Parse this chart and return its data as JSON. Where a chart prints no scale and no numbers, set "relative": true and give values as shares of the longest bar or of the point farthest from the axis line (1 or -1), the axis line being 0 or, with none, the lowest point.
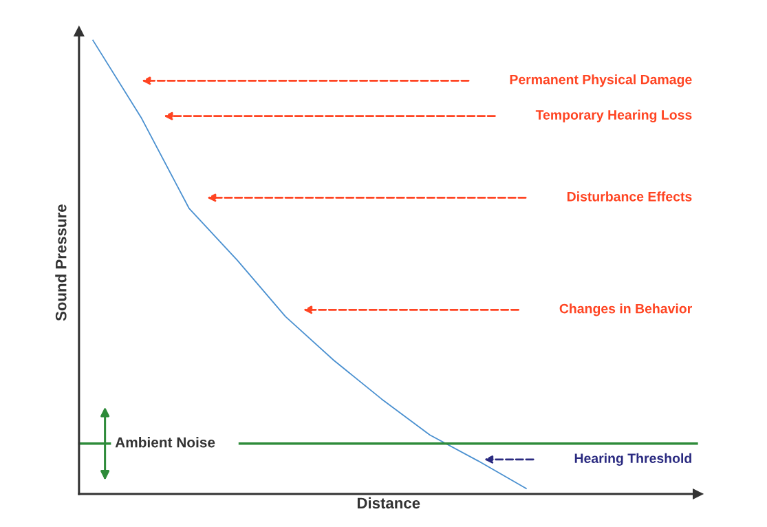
{
  "chart_data": {
    "type": "line",
    "relative": true,
    "xlabel": "Distance",
    "ylabel": "Sound Pressure",
    "categories": [
      null,
      null,
      null,
      null,
      null,
      null,
      null,
      null,
      null,
      null,
      null,
      null,
      null
    ],
    "series": [
      {
        "color": "#4a90d0",
        "values": [
          1,
          0.83,
          0.629,
          0.515,
          0.391,
          0.295,
          0.209,
          0.13,
          0.073,
          0.012,
          null,
          null,
          null
        ]
      }
    ],
    "ref_lines": [
      {
        "axis": "y",
        "value": 0.111,
        "label": "Ambient Noise",
        "color": "#2e8b3a",
        "line_style": "solid"
      }
    ],
    "annotations": [
      "Permanent Physical Damage",
      "Temporary Hearing Loss",
      "Disturbance Effects",
      "Changes in Behavior",
      "Hearing Threshold"
    ],
    "grid": false,
    "legend": false,
    "marker": "none",
    "line_style": "solid"
  }
}
